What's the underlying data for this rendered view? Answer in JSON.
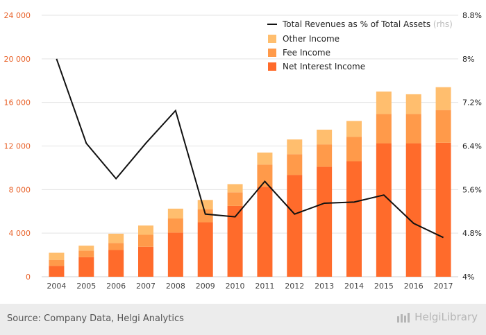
{
  "chart_data": {
    "type": "bar",
    "categories": [
      "2004",
      "2005",
      "2006",
      "2007",
      "2008",
      "2009",
      "2010",
      "2011",
      "2012",
      "2013",
      "2014",
      "2015",
      "2016",
      "2017"
    ],
    "series": [
      {
        "name": "Net Interest Income",
        "color": "#ff6b2b",
        "values": [
          1000,
          1800,
          2450,
          2750,
          4050,
          5000,
          6500,
          8250,
          9350,
          10100,
          10600,
          12250,
          12250,
          12300
        ]
      },
      {
        "name": "Fee Income",
        "color": "#ff9a4a",
        "values": [
          550,
          600,
          650,
          1100,
          1300,
          1200,
          1250,
          2050,
          1900,
          2050,
          2250,
          2700,
          2700,
          3000
        ]
      },
      {
        "name": "Other Income",
        "color": "#ffbe6e",
        "values": [
          650,
          450,
          850,
          850,
          900,
          850,
          750,
          1100,
          1350,
          1350,
          1450,
          2050,
          1800,
          2100
        ]
      }
    ],
    "line": {
      "name": "Total Revenues as % of Total Assets",
      "legend_suffix": "(rhs)",
      "color": "#111111",
      "values": [
        8.0,
        6.45,
        5.8,
        6.45,
        7.05,
        5.15,
        5.1,
        5.75,
        5.15,
        5.35,
        5.37,
        5.5,
        4.98,
        4.72
      ]
    },
    "y_left": {
      "ylim": [
        0,
        24000
      ],
      "ticks": [
        0,
        4000,
        8000,
        12000,
        16000,
        20000,
        24000
      ],
      "tick_labels": [
        "0",
        "4 000",
        "8 000",
        "12 000",
        "16 000",
        "20 000",
        "24 000"
      ],
      "color": "#e8622a"
    },
    "y_right": {
      "ylim": [
        4,
        8.8
      ],
      "ticks": [
        4,
        4.8,
        5.6,
        6.4,
        7.2,
        8,
        8.8
      ],
      "tick_labels": [
        "4%",
        "4.8%",
        "5.6%",
        "6.4%",
        "7.2%",
        "8%",
        "8.8%"
      ]
    },
    "grid": true,
    "legend_position": "top-right"
  },
  "footer": {
    "source": "Source: Company Data, Helgi Analytics",
    "brand": "HelgiLibrary"
  }
}
